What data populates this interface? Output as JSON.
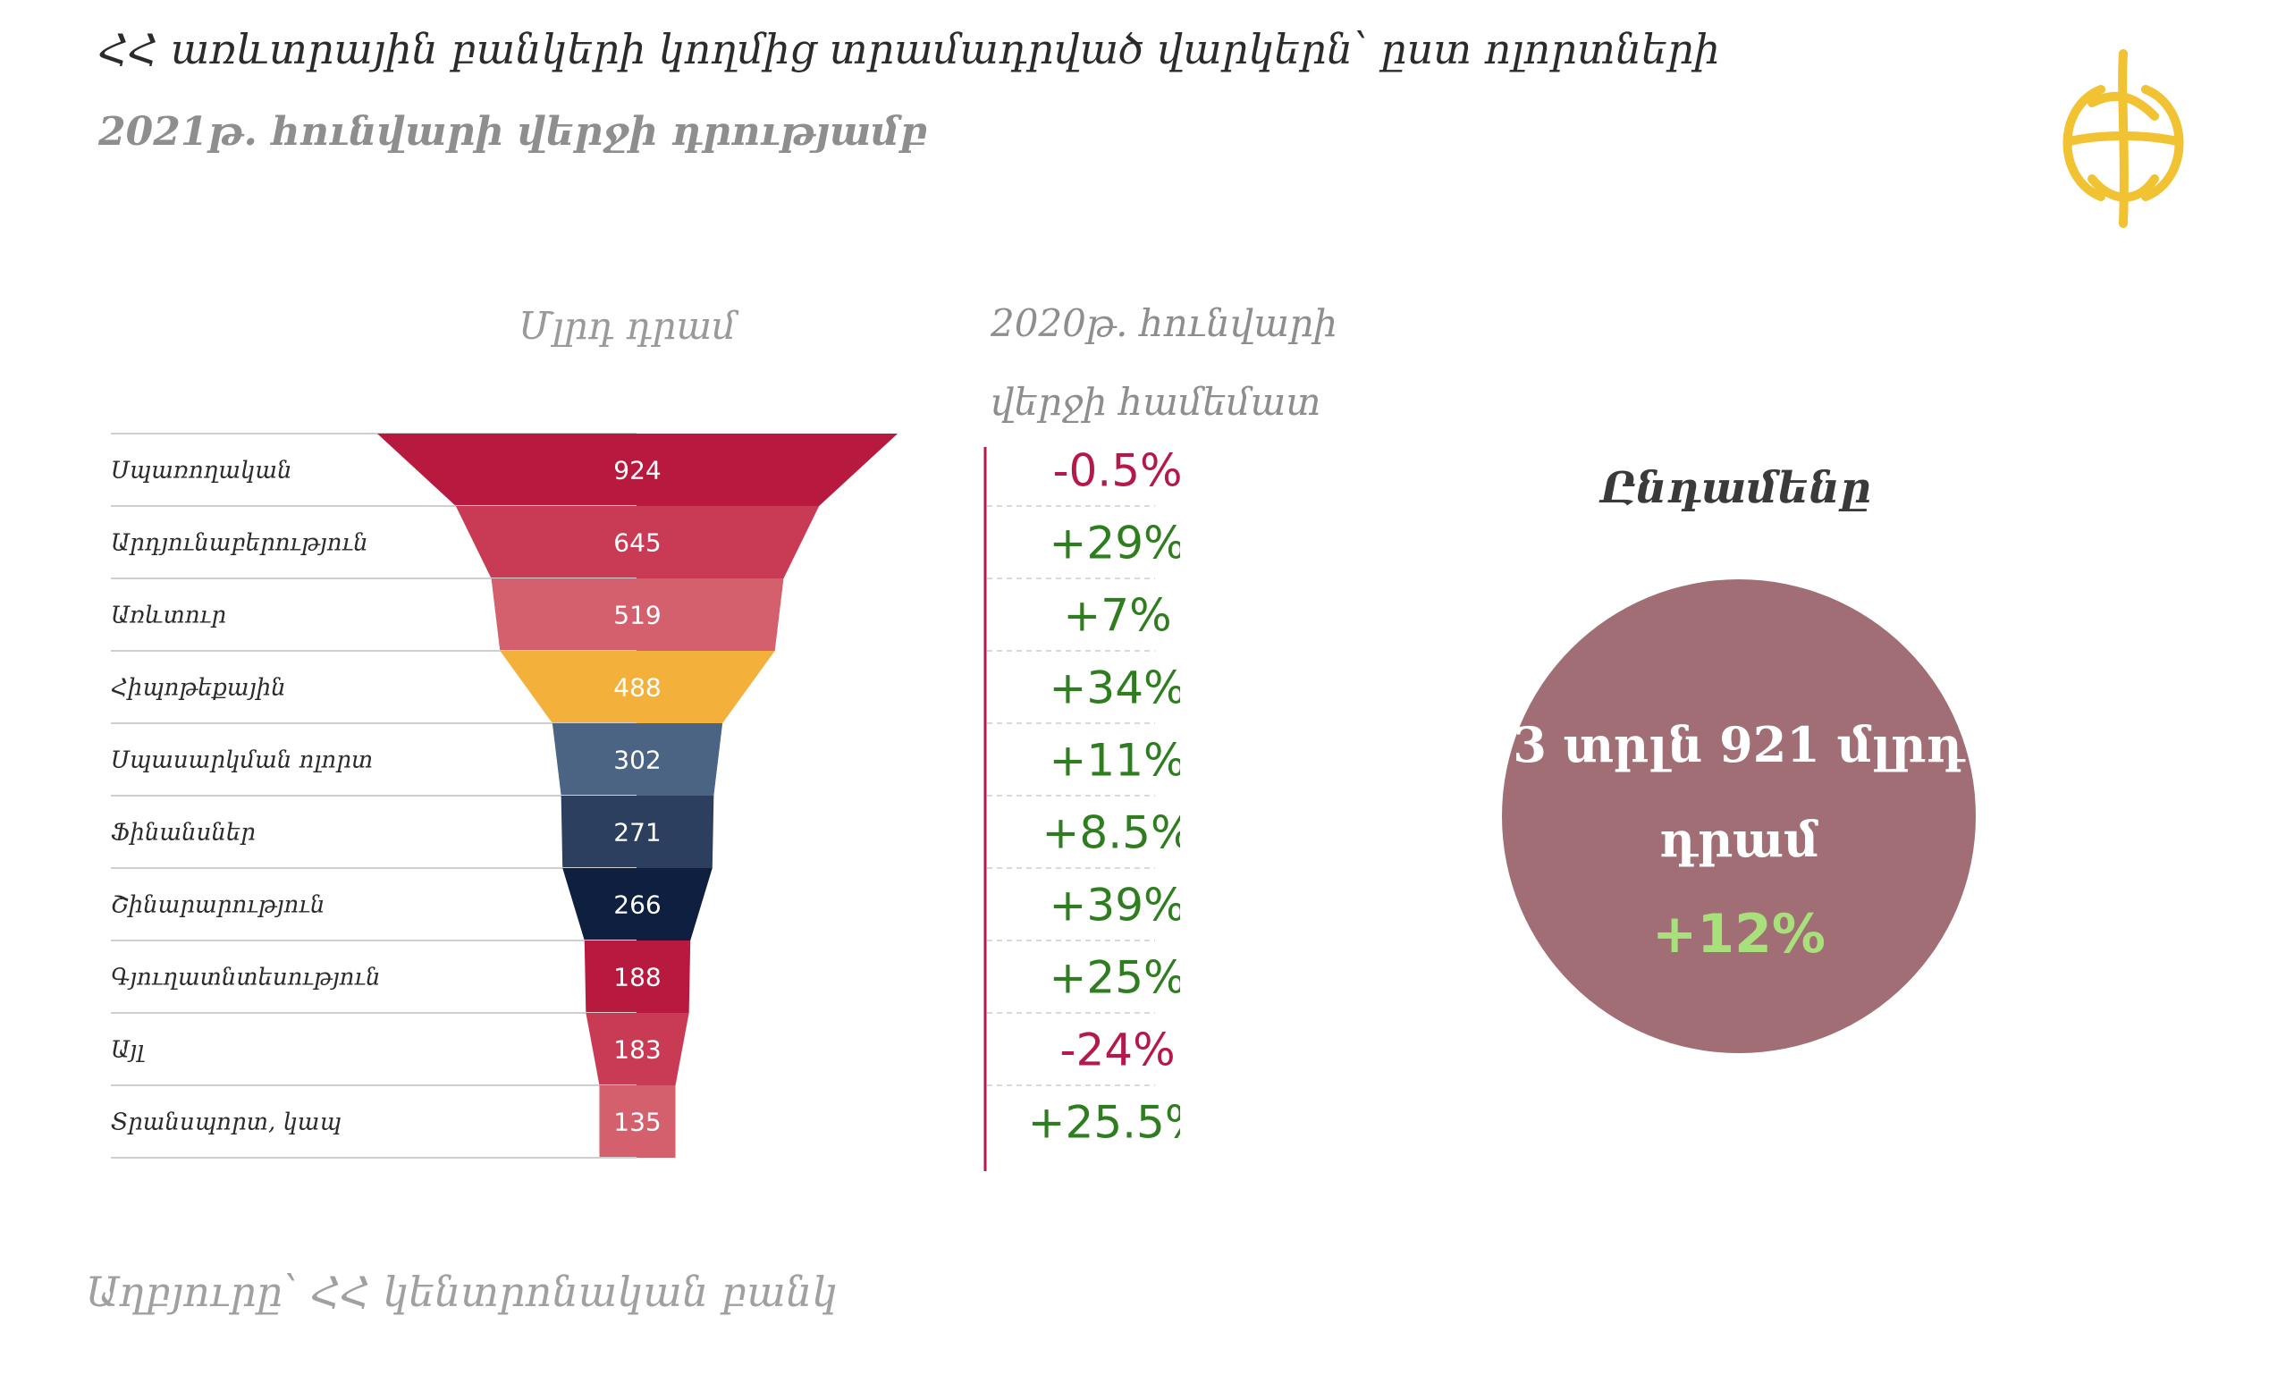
{
  "title": "ՀՀ առևտրային բանկերի կողմից տրամադրված վարկերն՝ ըստ ոլորտների",
  "subtitle": "2021թ. հունվարի վերջի դրությամբ",
  "unit_label": "Մլրդ դրամ",
  "comparison_label_line1": "2020թ. հունվարի",
  "comparison_label_line2": "վերջի համեմատ",
  "total": {
    "title": "Ընդամենը",
    "value": "3 տրլն 921 մլրդ դրամ",
    "change": "+12%"
  },
  "source": "Աղբյուրը՝ ՀՀ կենտրոնական բանկ",
  "colors": {
    "negative": "#b5194a",
    "positive": "#2e7d1e",
    "total_circle": "#a06e74",
    "total_change": "#a8e07c"
  },
  "chart_data": {
    "type": "bar",
    "categories": [
      "Սպառողական",
      "Արդյունաբերություն",
      "Առևտուր",
      "Հիպոթեքային",
      "Սպասարկման ոլորտ",
      "Ֆինանսներ",
      "Շինարարություն",
      "Գյուղատնտեսություն",
      "Այլ",
      "Տրանսպորտ, կապ"
    ],
    "values": [
      924,
      645,
      519,
      488,
      302,
      271,
      266,
      188,
      183,
      135
    ],
    "value_labels": [
      "924",
      "645",
      "519",
      "488",
      "302",
      "271",
      "266",
      "188",
      "183",
      "135"
    ],
    "changes": [
      "-0.5%",
      "+29%",
      "+7%",
      "+34%",
      "+11%",
      "+8.5%",
      "+39%",
      "+25%",
      "-24%",
      "+25.5%"
    ],
    "change_values": [
      -0.5,
      29,
      7,
      34,
      11,
      8.5,
      39,
      25,
      -24,
      25.5
    ],
    "segment_colors": [
      "#b8193f",
      "#c93b54",
      "#d4606d",
      "#f3b13b",
      "#4c6483",
      "#2c3f5e",
      "#0e1f40",
      "#b8193f",
      "#c93b54",
      "#d4606d"
    ],
    "xlabel": "",
    "ylabel": "Մլրդ դրամ"
  }
}
